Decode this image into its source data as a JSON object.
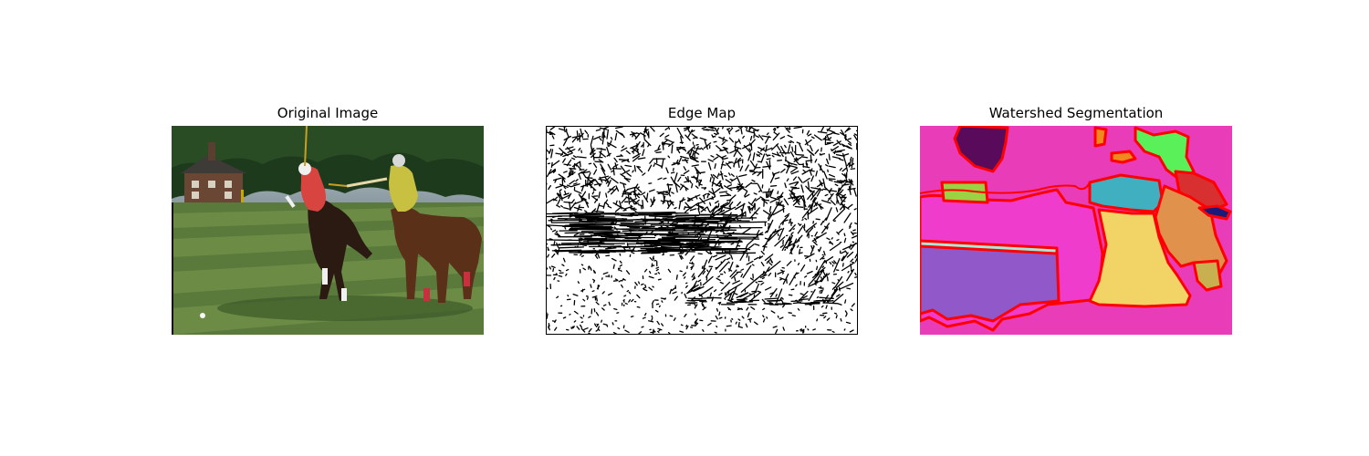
{
  "figure": {
    "panels": [
      {
        "title": "Original Image",
        "image": "photo-polo-players-on-horses"
      },
      {
        "title": "Edge Map",
        "image": "binary-edge-map"
      },
      {
        "title": "Watershed Segmentation",
        "image": "colored-segment-regions-with-red-boundaries"
      }
    ]
  },
  "colors": {
    "edge_background": "#ffffff",
    "edge_lines": "#000000",
    "segment_boundary": "#ff0000",
    "segments": [
      "#e83cb8",
      "#f03ccc",
      "#5a0a5a",
      "#9ad244",
      "#5af05a",
      "#40b0c0",
      "#d83030",
      "#f2d466",
      "#e0924c",
      "#c8b050",
      "#1a1a7a",
      "#9058c8",
      "#a8e8d8",
      "#f08a1e"
    ]
  }
}
